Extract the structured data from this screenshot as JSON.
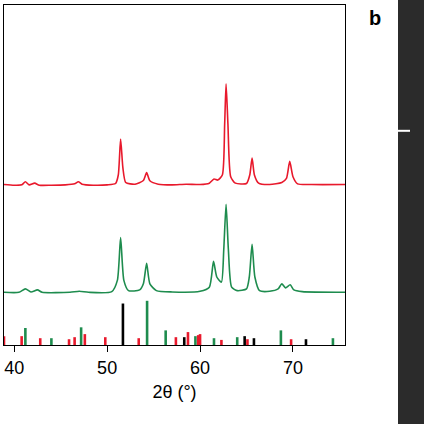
{
  "chart_data": {
    "type": "line",
    "x_label": "2θ (°)",
    "xlim": [
      38.9,
      75.6
    ],
    "xticks": [
      40,
      50,
      60,
      70
    ],
    "ylim": [
      0,
      100
    ],
    "tick_labels": "x",
    "grid": false,
    "annotations": [
      {
        "text": "b"
      }
    ],
    "series": [
      {
        "color": "#e8192c",
        "type": "line",
        "x": [
          38.9,
          40,
          40.8,
          41.2,
          41.6,
          42.2,
          42.7,
          44,
          45.5,
          46.5,
          46.9,
          47.3,
          48.5,
          50,
          50.9,
          51.2,
          51.45,
          51.7,
          52,
          53,
          53.9,
          54.25,
          54.6,
          55.5,
          57,
          58.5,
          60,
          61,
          61.5,
          61.9,
          62.4,
          62.65,
          62.8,
          63.0,
          63.3,
          63.8,
          65,
          65.35,
          65.6,
          65.85,
          66.3,
          67.5,
          68.8,
          69.3,
          69.65,
          70,
          70.5,
          72,
          75.6
        ],
        "values": [
          47.2,
          47.0,
          47.1,
          48.0,
          47.1,
          47.6,
          47.0,
          47.0,
          47.1,
          47.4,
          48.0,
          47.3,
          47.0,
          47.1,
          47.5,
          50,
          60.6,
          52,
          47.8,
          47.3,
          48.4,
          50.7,
          48.3,
          47.3,
          47.1,
          47.3,
          47.2,
          47.6,
          48.8,
          48.5,
          50,
          65,
          76.8,
          65,
          49.5,
          47.6,
          47.5,
          50,
          55.0,
          50,
          47.6,
          47.2,
          47.8,
          49,
          54.0,
          49.5,
          47.4,
          47.2,
          47.2
        ]
      },
      {
        "color": "#1e8c4e",
        "type": "line",
        "x": [
          38.9,
          40.5,
          41.2,
          41.8,
          42.5,
          43,
          46,
          47,
          48,
          50.5,
          51.1,
          51.45,
          51.8,
          52.3,
          53.5,
          53.9,
          54.25,
          54.6,
          55.3,
          57,
          60,
          61,
          61.45,
          61.8,
          62.3,
          62.55,
          62.8,
          63.05,
          63.4,
          64,
          65,
          65.3,
          65.6,
          65.9,
          66.4,
          67.5,
          68.4,
          68.8,
          69.2,
          69.7,
          70.1,
          71,
          75.6
        ],
        "values": [
          15.5,
          15.5,
          16.5,
          15.6,
          16.2,
          15.5,
          15.5,
          15.8,
          15.5,
          15.7,
          19,
          31.6,
          19,
          16,
          16.2,
          18,
          24,
          18,
          16,
          15.6,
          15.8,
          17,
          24.6,
          20,
          18.5,
          28,
          41.4,
          28,
          17,
          16,
          16.5,
          20,
          29.6,
          20,
          16,
          15.8,
          16.5,
          18,
          16.8,
          17.7,
          16.2,
          15.7,
          15.5
        ]
      },
      {
        "color": "#000000",
        "type": "bar",
        "x": [
          51.7,
          58.3,
          64.8,
          65.8,
          71.4
        ],
        "values": [
          12.2,
          2.3,
          2.6,
          2.0,
          1.7
        ]
      },
      {
        "color": "#1e8c4e",
        "type": "bar",
        "x": [
          41.2,
          44.0,
          47.2,
          54.3,
          56.3,
          59.5,
          61.5,
          64.0,
          68.7,
          74.3
        ],
        "values": [
          5.0,
          2.0,
          5.2,
          13.0,
          4.3,
          2.6,
          2.0,
          2.3,
          4.3,
          2.0
        ]
      },
      {
        "color": "#e8192c",
        "type": "bar",
        "x": [
          38.9,
          40.8,
          42.8,
          45.9,
          46.5,
          47.6,
          49.8,
          53.4,
          57.4,
          58.7,
          59.8,
          60.0,
          62.3,
          65.1,
          69.8
        ],
        "values": [
          2.6,
          2.6,
          2.0,
          1.7,
          2.3,
          3.2,
          2.3,
          2.0,
          2.3,
          3.8,
          2.9,
          3.2,
          1.5,
          1.7,
          1.7
        ]
      }
    ]
  }
}
